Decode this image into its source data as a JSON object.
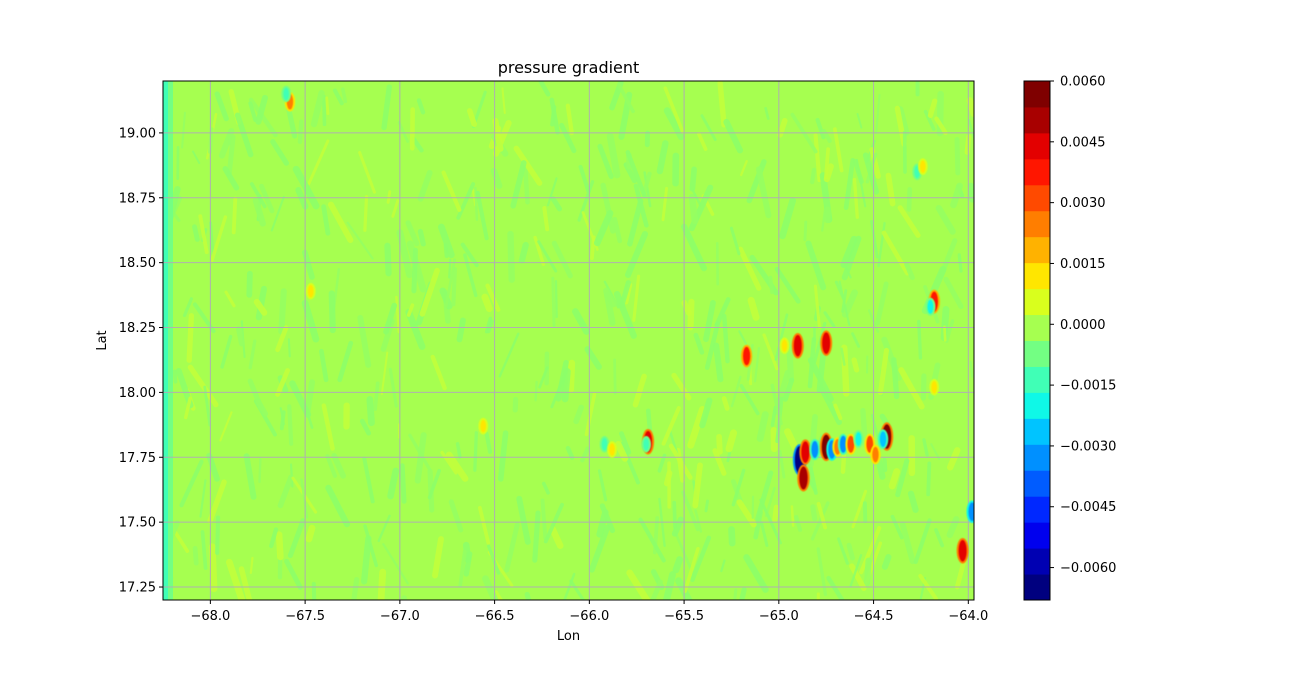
{
  "chart_data": {
    "type": "heatmap",
    "title": "pressure gradient",
    "xlabel": "Lon",
    "ylabel": "Lat",
    "xlim": [
      -68.25,
      -63.97
    ],
    "ylim": [
      17.2,
      19.2
    ],
    "grid": true,
    "x_ticks": [
      -68.0,
      -67.5,
      -67.0,
      -66.5,
      -66.0,
      -65.5,
      -65.0,
      -64.5,
      -64.0
    ],
    "x_tick_labels": [
      "−68.0",
      "−67.5",
      "−67.0",
      "−66.5",
      "−66.0",
      "−65.5",
      "−65.0",
      "−64.5",
      "−64.0"
    ],
    "y_ticks": [
      17.25,
      17.5,
      17.75,
      18.0,
      18.25,
      18.5,
      18.75,
      19.0
    ],
    "y_tick_labels": [
      "17.25",
      "17.50",
      "17.75",
      "18.00",
      "18.25",
      "18.50",
      "18.75",
      "19.00"
    ],
    "background_value": 0.0,
    "colorbar": {
      "colormap": "jet",
      "vmin": -0.0068,
      "vmax": 0.006,
      "levels": 26,
      "colors": [
        "#00007f",
        "#0000b2",
        "#0000ee",
        "#0028ff",
        "#005cff",
        "#0090ff",
        "#00c4ff",
        "#0ff8e7",
        "#40ffb6",
        "#73ff83",
        "#a6ff50",
        "#d9ff1d",
        "#ffe600",
        "#ffb200",
        "#ff7e00",
        "#ff4a00",
        "#ff1600",
        "#e30000",
        "#a80000",
        "#7f0000"
      ],
      "ticks": [
        -0.006,
        -0.0045,
        -0.003,
        -0.0015,
        0.0,
        0.0015,
        0.003,
        0.0045,
        0.006
      ],
      "tick_labels": [
        "−0.0060",
        "−0.0045",
        "−0.0030",
        "−0.0015",
        "0.0000",
        "0.0015",
        "0.0030",
        "0.0045",
        "0.0060"
      ]
    },
    "features": [
      {
        "lon": -64.89,
        "lat": 17.74,
        "value": -0.0065
      },
      {
        "lon": -64.87,
        "lat": 17.67,
        "value": 0.005
      },
      {
        "lon": -64.86,
        "lat": 17.77,
        "value": 0.0045
      },
      {
        "lon": -64.81,
        "lat": 17.78,
        "value": -0.003
      },
      {
        "lon": -64.75,
        "lat": 17.79,
        "value": 0.0055
      },
      {
        "lon": -64.72,
        "lat": 17.78,
        "value": -0.0035
      },
      {
        "lon": -64.69,
        "lat": 17.79,
        "value": 0.0025
      },
      {
        "lon": -64.66,
        "lat": 17.8,
        "value": -0.003
      },
      {
        "lon": -64.62,
        "lat": 17.8,
        "value": 0.003
      },
      {
        "lon": -64.58,
        "lat": 17.82,
        "value": -0.002
      },
      {
        "lon": -64.52,
        "lat": 17.8,
        "value": 0.003
      },
      {
        "lon": -64.49,
        "lat": 17.76,
        "value": 0.0025
      },
      {
        "lon": -64.43,
        "lat": 17.83,
        "value": 0.0055
      },
      {
        "lon": -64.45,
        "lat": 17.82,
        "value": -0.0025
      },
      {
        "lon": -65.69,
        "lat": 17.81,
        "value": 0.0045
      },
      {
        "lon": -65.7,
        "lat": 17.8,
        "value": -0.0015
      },
      {
        "lon": -65.92,
        "lat": 17.8,
        "value": -0.0015
      },
      {
        "lon": -65.88,
        "lat": 17.78,
        "value": 0.0015
      },
      {
        "lon": -65.17,
        "lat": 18.14,
        "value": 0.0035
      },
      {
        "lon": -64.97,
        "lat": 18.18,
        "value": 0.0015
      },
      {
        "lon": -64.9,
        "lat": 18.18,
        "value": 0.0045
      },
      {
        "lon": -64.75,
        "lat": 18.19,
        "value": 0.0045
      },
      {
        "lon": -64.18,
        "lat": 18.35,
        "value": 0.004
      },
      {
        "lon": -64.2,
        "lat": 18.33,
        "value": -0.002
      },
      {
        "lon": -64.03,
        "lat": 17.39,
        "value": 0.0045
      },
      {
        "lon": -63.98,
        "lat": 17.54,
        "value": -0.0035
      },
      {
        "lon": -64.18,
        "lat": 18.02,
        "value": 0.0015
      },
      {
        "lon": -67.58,
        "lat": 19.12,
        "value": 0.0025
      },
      {
        "lon": -67.6,
        "lat": 19.15,
        "value": -0.0015
      },
      {
        "lon": -67.47,
        "lat": 18.39,
        "value": 0.0015
      },
      {
        "lon": -66.56,
        "lat": 17.87,
        "value": 0.0015
      },
      {
        "lon": -64.27,
        "lat": 18.85,
        "value": -0.0015
      },
      {
        "lon": -64.24,
        "lat": 18.87,
        "value": 0.0015
      }
    ]
  }
}
